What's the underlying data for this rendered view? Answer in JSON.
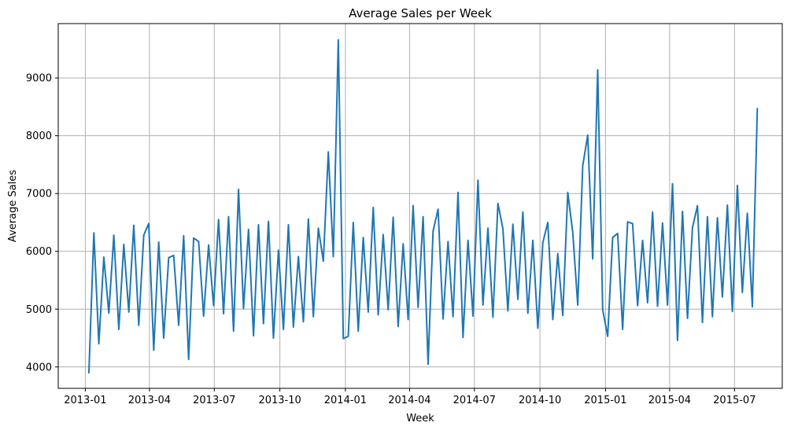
{
  "chart_data": {
    "type": "line",
    "title": "Average Sales per Week",
    "xlabel": "Week",
    "ylabel": "Average Sales",
    "xlim": [
      "2012-11-24",
      "2015-09-06"
    ],
    "ylim": [
      3630,
      9940
    ],
    "grid": true,
    "x_ticks": [
      {
        "date": "2013-01-01",
        "label": "2013-01"
      },
      {
        "date": "2013-04-01",
        "label": "2013-04"
      },
      {
        "date": "2013-07-01",
        "label": "2013-07"
      },
      {
        "date": "2013-10-01",
        "label": "2013-10"
      },
      {
        "date": "2014-01-01",
        "label": "2014-01"
      },
      {
        "date": "2014-04-01",
        "label": "2014-04"
      },
      {
        "date": "2014-07-01",
        "label": "2014-07"
      },
      {
        "date": "2014-10-01",
        "label": "2014-10"
      },
      {
        "date": "2015-01-01",
        "label": "2015-01"
      },
      {
        "date": "2015-04-01",
        "label": "2015-04"
      },
      {
        "date": "2015-07-01",
        "label": "2015-07"
      }
    ],
    "y_ticks": [
      {
        "value": 4000,
        "label": "4000"
      },
      {
        "value": 5000,
        "label": "5000"
      },
      {
        "value": 6000,
        "label": "6000"
      },
      {
        "value": 7000,
        "label": "7000"
      },
      {
        "value": 8000,
        "label": "8000"
      },
      {
        "value": 9000,
        "label": "9000"
      }
    ],
    "series": [
      {
        "color": "#1f77b4",
        "x": [
          "2013-01-06",
          "2013-01-13",
          "2013-01-20",
          "2013-01-27",
          "2013-02-03",
          "2013-02-10",
          "2013-02-17",
          "2013-02-24",
          "2013-03-03",
          "2013-03-10",
          "2013-03-17",
          "2013-03-24",
          "2013-03-31",
          "2013-04-07",
          "2013-04-14",
          "2013-04-21",
          "2013-04-28",
          "2013-05-05",
          "2013-05-12",
          "2013-05-19",
          "2013-05-26",
          "2013-06-02",
          "2013-06-09",
          "2013-06-16",
          "2013-06-23",
          "2013-06-30",
          "2013-07-07",
          "2013-07-14",
          "2013-07-21",
          "2013-07-28",
          "2013-08-04",
          "2013-08-11",
          "2013-08-18",
          "2013-08-25",
          "2013-09-01",
          "2013-09-08",
          "2013-09-15",
          "2013-09-22",
          "2013-09-29",
          "2013-10-06",
          "2013-10-13",
          "2013-10-20",
          "2013-10-27",
          "2013-11-03",
          "2013-11-10",
          "2013-11-17",
          "2013-11-24",
          "2013-12-01",
          "2013-12-08",
          "2013-12-15",
          "2013-12-22",
          "2013-12-29",
          "2014-01-05",
          "2014-01-12",
          "2014-01-19",
          "2014-01-26",
          "2014-02-02",
          "2014-02-09",
          "2014-02-16",
          "2014-02-23",
          "2014-03-02",
          "2014-03-09",
          "2014-03-16",
          "2014-03-23",
          "2014-03-30",
          "2014-04-06",
          "2014-04-13",
          "2014-04-20",
          "2014-04-27",
          "2014-05-04",
          "2014-05-11",
          "2014-05-18",
          "2014-05-25",
          "2014-06-01",
          "2014-06-08",
          "2014-06-15",
          "2014-06-22",
          "2014-06-29",
          "2014-07-06",
          "2014-07-13",
          "2014-07-20",
          "2014-07-27",
          "2014-08-03",
          "2014-08-10",
          "2014-08-17",
          "2014-08-24",
          "2014-08-31",
          "2014-09-07",
          "2014-09-14",
          "2014-09-21",
          "2014-09-28",
          "2014-10-05",
          "2014-10-12",
          "2014-10-19",
          "2014-10-26",
          "2014-11-02",
          "2014-11-09",
          "2014-11-16",
          "2014-11-23",
          "2014-11-30",
          "2014-12-07",
          "2014-12-14",
          "2014-12-21",
          "2014-12-28",
          "2015-01-04",
          "2015-01-11",
          "2015-01-18",
          "2015-01-25",
          "2015-02-01",
          "2015-02-08",
          "2015-02-15",
          "2015-02-22",
          "2015-03-01",
          "2015-03-08",
          "2015-03-15",
          "2015-03-22",
          "2015-03-29",
          "2015-04-05",
          "2015-04-12",
          "2015-04-19",
          "2015-04-26",
          "2015-05-03",
          "2015-05-10",
          "2015-05-17",
          "2015-05-24",
          "2015-05-31",
          "2015-06-07",
          "2015-06-14",
          "2015-06-21",
          "2015-06-28",
          "2015-07-05",
          "2015-07-12",
          "2015-07-19",
          "2015-07-26",
          "2015-08-02"
        ],
        "y": [
          3900,
          6320,
          4400,
          5900,
          4930,
          6280,
          4650,
          6120,
          4950,
          6450,
          4720,
          6280,
          6480,
          4290,
          6160,
          4500,
          5890,
          5930,
          4720,
          6270,
          4130,
          6230,
          6170,
          4880,
          6110,
          5060,
          6550,
          4920,
          6600,
          4620,
          7070,
          5010,
          6380,
          4540,
          6460,
          4750,
          6520,
          4500,
          6020,
          4650,
          6460,
          4690,
          5910,
          4780,
          6560,
          4870,
          6400,
          5830,
          7720,
          5910,
          9660,
          4490,
          4530,
          6500,
          4620,
          6240,
          4950,
          6760,
          4900,
          6290,
          4990,
          6590,
          4700,
          6130,
          4820,
          6790,
          5030,
          6600,
          4050,
          6350,
          6730,
          4830,
          6170,
          4870,
          7020,
          4510,
          6190,
          4880,
          7230,
          5070,
          6400,
          4860,
          6830,
          6390,
          4970,
          6470,
          5170,
          6680,
          4930,
          6190,
          4670,
          6150,
          6500,
          4820,
          5960,
          4890,
          7020,
          6330,
          5070,
          7480,
          8010,
          5870,
          9140,
          4990,
          4530,
          6240,
          6310,
          4650,
          6510,
          6480,
          5060,
          6190,
          5110,
          6680,
          5050,
          6490,
          5070,
          7170,
          4460,
          6690,
          4840,
          6410,
          6790,
          4770,
          6600,
          4870,
          6580,
          5210,
          6800,
          4960,
          7140,
          5290,
          6660,
          5040,
          8470
        ]
      }
    ]
  }
}
